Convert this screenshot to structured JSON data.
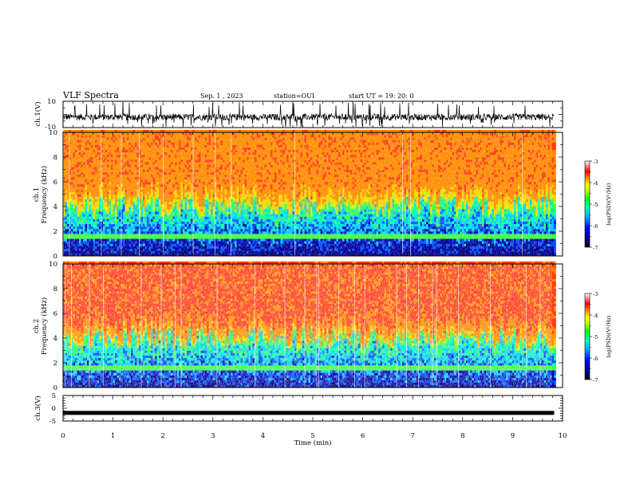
{
  "header": {
    "title": "VLF Spectra",
    "date": "Sep. 1 , 2023",
    "station": "station=OUI",
    "start": "start  UT =   19: 20: 0"
  },
  "chart_data": [
    {
      "type": "line",
      "name": "ch1-waveform",
      "ylabel": "ch.1(V)",
      "ylim": [
        -10,
        10
      ],
      "yticks": [
        "10",
        "-10"
      ],
      "xlim": [
        0,
        10
      ],
      "data_end": 9.83,
      "description_level": "noisy waveform fluctuating about -2 V with spikes to ±10"
    },
    {
      "type": "heatmap",
      "name": "ch1-spectrogram",
      "ylabel_top": "ch.1",
      "ylabel": "Frequency  (kHz)",
      "ylim": [
        0,
        10
      ],
      "yticks": [
        "0",
        "2",
        "4",
        "6",
        "8",
        "10"
      ],
      "xlim": [
        0,
        10
      ],
      "data_end": 9.83,
      "colorbar": {
        "label": "log(PSD)(V²/Hz)",
        "range": [
          -7,
          -3
        ],
        "ticks": [
          "-3",
          "-4",
          "-5",
          "-6",
          "-7"
        ]
      }
    },
    {
      "type": "heatmap",
      "name": "ch2-spectrogram",
      "ylabel_top": "ch.2",
      "ylabel": "Frequency  (kHz)",
      "ylim": [
        0,
        10
      ],
      "yticks": [
        "0",
        "2",
        "4",
        "6",
        "8",
        "10"
      ],
      "xlim": [
        0,
        10
      ],
      "data_end": 9.83,
      "colorbar": {
        "label": "log(PSD)(V²/Hz)",
        "range": [
          -7,
          -3
        ],
        "ticks": [
          "-3",
          "-4",
          "-5",
          "-6",
          "-7"
        ]
      }
    },
    {
      "type": "line",
      "name": "ch3-waveform",
      "ylabel": "ch.3(V)",
      "ylim": [
        -5,
        5
      ],
      "yticks": [
        "5",
        "0",
        "-5"
      ],
      "xlim": [
        0,
        10
      ],
      "xticks": [
        "0",
        "1",
        "2",
        "3",
        "4",
        "5",
        "6",
        "7",
        "8",
        "9",
        "10"
      ],
      "xlabel": "Time  (min)",
      "data_end": 9.83,
      "level": -1.8
    }
  ]
}
